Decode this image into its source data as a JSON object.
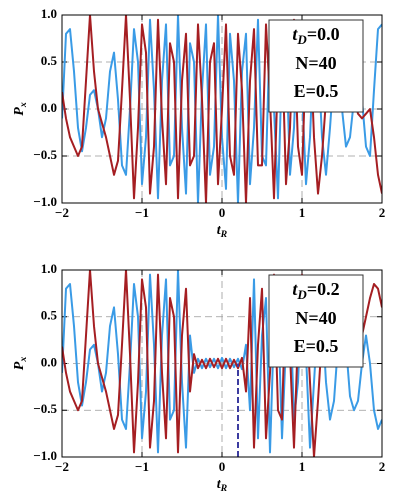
{
  "chart_data": [
    {
      "type": "line",
      "annotation": {
        "var": "t",
        "sub": "D",
        "rest": "=0.0",
        "lines": [
          "N=40",
          "E=0.5"
        ]
      },
      "xlabel": {
        "var": "t",
        "sub": "R"
      },
      "ylabel": {
        "var": "P",
        "sub": "x"
      },
      "xlim": [
        -2,
        2
      ],
      "ylim": [
        -1,
        1
      ],
      "xticks": [
        {
          "value": -2,
          "label": "−2"
        },
        {
          "value": -1,
          "label": "−1"
        },
        0,
        1,
        2
      ],
      "yticks": [
        {
          "value": -1,
          "label": "−1.0"
        },
        {
          "value": -0.5,
          "label": "−0.5"
        },
        {
          "value": 0,
          "label": "0.0"
        },
        {
          "value": 0.5,
          "label": "0.5"
        },
        {
          "value": 1,
          "label": "1.0"
        }
      ],
      "grid": true,
      "x": [
        -2,
        -1.95,
        -1.9,
        -1.85,
        -1.8,
        -1.75,
        -1.7,
        -1.65,
        -1.6,
        -1.55,
        -1.5,
        -1.45,
        -1.4,
        -1.35,
        -1.3,
        -1.25,
        -1.2,
        -1.15,
        -1.1,
        -1.05,
        -1,
        -0.95,
        -0.9,
        -0.85,
        -0.8,
        -0.75,
        -0.7,
        -0.65,
        -0.6,
        -0.55,
        -0.5,
        -0.45,
        -0.4,
        -0.35,
        -0.3,
        -0.25,
        -0.2,
        -0.15,
        -0.1,
        -0.05,
        0,
        0.05,
        0.1,
        0.15,
        0.2,
        0.25,
        0.3,
        0.35,
        0.4,
        0.45,
        0.5,
        0.55,
        0.6,
        0.65,
        0.7,
        0.75,
        0.8,
        0.85,
        0.9,
        0.95,
        1,
        1.05,
        1.1,
        1.15,
        1.2,
        1.25,
        1.3,
        1.35,
        1.4,
        1.45,
        1.5,
        1.55,
        1.6,
        1.65,
        1.7,
        1.75,
        1.8,
        1.85,
        1.9,
        1.95,
        2
      ],
      "series": [
        {
          "color": "#3a9be6",
          "values": [
            -0.1,
            0.8,
            0.85,
            0.4,
            -0.2,
            -0.45,
            -0.2,
            0.15,
            0.2,
            0.0,
            -0.3,
            -0.1,
            0.4,
            0.6,
            0.1,
            -0.6,
            -0.7,
            0.0,
            0.85,
            0.5,
            -0.8,
            -0.3,
            0.95,
            0.2,
            -0.95,
            0.3,
            0.9,
            -0.6,
            -0.5,
            1.0,
            -0.2,
            -0.9,
            0.7,
            0.5,
            -1.0,
            0.2,
            0.9,
            -0.7,
            -0.4,
            1.0,
            -0.3,
            -0.85,
            0.8,
            0.3,
            -1.0,
            0.4,
            0.8,
            -0.8,
            -0.2,
            0.95,
            -0.5,
            -0.6,
            0.9,
            0.0,
            -0.95,
            0.5,
            0.7,
            -0.7,
            -0.2,
            0.9,
            0.2,
            -0.8,
            -0.3,
            0.7,
            0.6,
            -0.3,
            -0.7,
            -0.2,
            0.4,
            0.5,
            0.0,
            -0.4,
            -0.3,
            0.1,
            0.3,
            0.1,
            -0.4,
            -0.5,
            0.2,
            0.85,
            0.9
          ]
        },
        {
          "color": "#a51e22",
          "values": [
            0.18,
            -0.1,
            -0.3,
            -0.4,
            -0.5,
            -0.4,
            0.3,
            1.0,
            0.4,
            0.0,
            -0.15,
            -0.3,
            -0.5,
            -0.7,
            -0.55,
            0.2,
            1.0,
            0.1,
            -0.95,
            -0.2,
            0.9,
            0.6,
            -0.9,
            -0.4,
            0.95,
            -0.1,
            -0.8,
            0.7,
            0.5,
            -0.95,
            0.3,
            0.8,
            -0.6,
            -0.5,
            0.9,
            0.1,
            -1.0,
            0.5,
            0.7,
            -0.8,
            0.0,
            0.9,
            -0.5,
            -0.7,
            0.8,
            0.2,
            -1.0,
            0.3,
            0.85,
            -0.6,
            -0.6,
            0.9,
            0.1,
            -0.95,
            0.4,
            0.7,
            -0.8,
            -0.2,
            0.95,
            -0.4,
            -0.7,
            0.6,
            0.8,
            -0.3,
            -0.9,
            -0.5,
            0.1,
            0.5,
            0.7,
            0.8,
            0.7,
            0.5,
            0.3,
            0.1,
            -0.05,
            -0.1,
            -0.05,
            0.0,
            -0.3,
            -0.7,
            -0.9
          ]
        }
      ]
    },
    {
      "type": "line",
      "annotation": {
        "var": "t",
        "sub": "D",
        "rest": "=0.2",
        "lines": [
          "N=40",
          "E=0.5"
        ]
      },
      "xlabel": {
        "var": "t",
        "sub": "R"
      },
      "ylabel": {
        "var": "P",
        "sub": "x"
      },
      "xlim": [
        -2,
        2
      ],
      "ylim": [
        -1,
        1
      ],
      "xticks": [
        {
          "value": -2,
          "label": "−2"
        },
        {
          "value": -1,
          "label": "−1"
        },
        0,
        1,
        2
      ],
      "yticks": [
        {
          "value": -1,
          "label": "−1.0"
        },
        {
          "value": -0.5,
          "label": "−0.5"
        },
        {
          "value": 0,
          "label": "0.0"
        },
        {
          "value": 0.5,
          "label": "0.5"
        },
        {
          "value": 1,
          "label": "1.0"
        }
      ],
      "grid": true,
      "marker_line": {
        "x": 0.2,
        "y": [
          -1,
          0
        ],
        "color": "#3c3ca0"
      },
      "x": [
        -2,
        -1.95,
        -1.9,
        -1.85,
        -1.8,
        -1.75,
        -1.7,
        -1.65,
        -1.6,
        -1.55,
        -1.5,
        -1.45,
        -1.4,
        -1.35,
        -1.3,
        -1.25,
        -1.2,
        -1.15,
        -1.1,
        -1.05,
        -1,
        -0.95,
        -0.9,
        -0.85,
        -0.8,
        -0.75,
        -0.7,
        -0.65,
        -0.6,
        -0.55,
        -0.5,
        -0.45,
        -0.4,
        -0.35,
        -0.3,
        -0.25,
        -0.2,
        -0.15,
        -0.1,
        -0.05,
        0,
        0.05,
        0.1,
        0.15,
        0.2,
        0.25,
        0.3,
        0.35,
        0.4,
        0.45,
        0.5,
        0.55,
        0.6,
        0.65,
        0.7,
        0.75,
        0.8,
        0.85,
        0.9,
        0.95,
        1,
        1.05,
        1.1,
        1.15,
        1.2,
        1.25,
        1.3,
        1.35,
        1.4,
        1.45,
        1.5,
        1.55,
        1.6,
        1.65,
        1.7,
        1.75,
        1.8,
        1.85,
        1.9,
        1.95,
        2
      ],
      "series": [
        {
          "color": "#3a9be6",
          "values": [
            -0.1,
            0.8,
            0.85,
            0.4,
            -0.2,
            -0.45,
            -0.2,
            0.15,
            0.2,
            0.0,
            -0.3,
            -0.1,
            0.4,
            0.6,
            0.1,
            -0.6,
            -0.7,
            0.0,
            0.85,
            0.5,
            -0.8,
            -0.3,
            0.95,
            0.2,
            -0.95,
            0.3,
            0.9,
            -0.6,
            -0.5,
            1.0,
            -0.2,
            -0.9,
            0.3,
            -0.1,
            0.05,
            -0.05,
            0.05,
            -0.04,
            0.05,
            -0.05,
            0.06,
            -0.05,
            0.05,
            -0.04,
            0.05,
            -0.06,
            0.2,
            -0.5,
            0.9,
            -0.8,
            0.3,
            0.7,
            -0.95,
            0.4,
            0.6,
            -0.8,
            0.2,
            0.7,
            -0.6,
            -0.2,
            0.8,
            0.1,
            -0.9,
            -0.2,
            0.5,
            0.55,
            -0.2,
            -0.6,
            -0.4,
            0.2,
            0.5,
            0.2,
            -0.35,
            -0.5,
            -0.4,
            0.0,
            0.3,
            0.0,
            -0.5,
            -0.7,
            -0.6
          ]
        },
        {
          "color": "#a51e22",
          "values": [
            0.18,
            -0.1,
            -0.3,
            -0.4,
            -0.5,
            -0.4,
            0.3,
            1.0,
            0.4,
            0.0,
            -0.15,
            -0.3,
            -0.5,
            -0.7,
            -0.55,
            0.2,
            1.0,
            0.1,
            -0.95,
            -0.2,
            0.9,
            0.6,
            -0.9,
            -0.4,
            0.95,
            -0.1,
            -0.8,
            0.7,
            0.5,
            -0.95,
            0.3,
            0.8,
            -0.3,
            0.1,
            -0.05,
            0.04,
            -0.05,
            0.05,
            -0.04,
            0.05,
            -0.05,
            0.05,
            -0.05,
            0.04,
            -0.05,
            0.06,
            -0.3,
            0.7,
            -0.9,
            0.2,
            0.8,
            -0.8,
            -0.1,
            0.95,
            -0.5,
            -0.6,
            0.9,
            0.1,
            -0.9,
            0.3,
            0.95,
            0.6,
            -0.2,
            -1.0,
            -0.4,
            0.3,
            0.7,
            0.85,
            0.9,
            0.85,
            0.7,
            0.5,
            0.3,
            0.2,
            0.2,
            0.3,
            0.5,
            0.7,
            0.85,
            0.8,
            0.6
          ]
        }
      ]
    }
  ]
}
